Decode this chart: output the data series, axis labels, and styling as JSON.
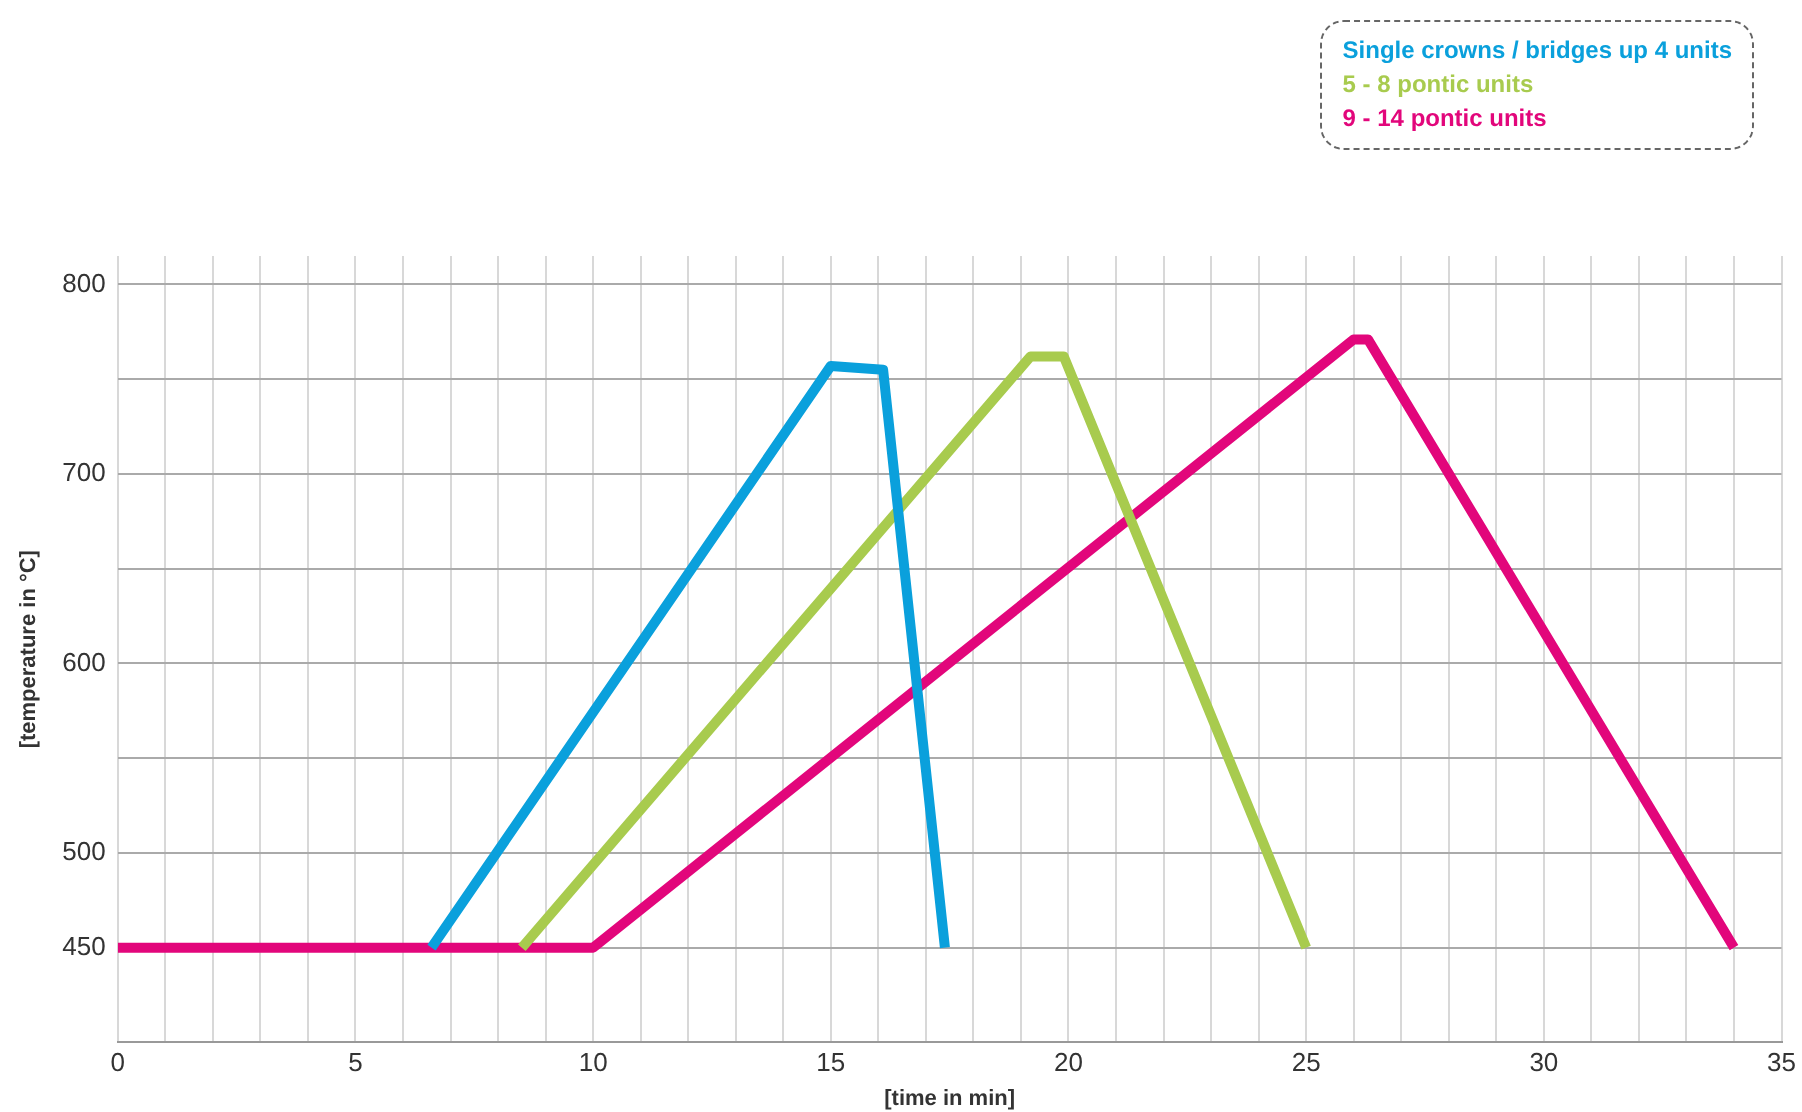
{
  "chart_data": {
    "type": "line",
    "xlabel": "[time in min]",
    "ylabel": "[temperature in °C]",
    "xlim": [
      0,
      35
    ],
    "ylim": [
      400,
      815
    ],
    "xticks": [
      0,
      {
        "value": 1,
        "label": null
      },
      {
        "value": 2,
        "label": null
      },
      {
        "value": 3,
        "label": null
      },
      {
        "value": 4,
        "label": null
      },
      5,
      {
        "value": 6,
        "label": null
      },
      {
        "value": 7,
        "label": null
      },
      {
        "value": 8,
        "label": null
      },
      {
        "value": 9,
        "label": null
      },
      10,
      {
        "value": 11,
        "label": null
      },
      {
        "value": 12,
        "label": null
      },
      {
        "value": 13,
        "label": null
      },
      {
        "value": 14,
        "label": null
      },
      15,
      {
        "value": 16,
        "label": null
      },
      {
        "value": 17,
        "label": null
      },
      {
        "value": 18,
        "label": null
      },
      {
        "value": 19,
        "label": null
      },
      20,
      {
        "value": 21,
        "label": null
      },
      {
        "value": 22,
        "label": null
      },
      {
        "value": 23,
        "label": null
      },
      {
        "value": 24,
        "label": null
      },
      25,
      {
        "value": 26,
        "label": null
      },
      {
        "value": 27,
        "label": null
      },
      {
        "value": 28,
        "label": null
      },
      {
        "value": 29,
        "label": null
      },
      30,
      {
        "value": 31,
        "label": null
      },
      {
        "value": 32,
        "label": null
      },
      {
        "value": 33,
        "label": null
      },
      {
        "value": 34,
        "label": null
      },
      35
    ],
    "yticks": [
      {
        "value": 400,
        "label": null
      },
      450,
      500,
      {
        "value": 550,
        "label": null
      },
      600,
      {
        "value": 650,
        "label": null
      },
      700,
      {
        "value": 750,
        "label": null
      },
      800
    ],
    "grid": true,
    "legend": "top right",
    "marker": "none",
    "line_style": "solid",
    "series": [
      {
        "name": "Single crowns / bridges up 4 units",
        "color": "#0aa0dc",
        "x": [
          6.6,
          15.0,
          16.1,
          17.4
        ],
        "values": [
          450,
          757,
          755,
          450
        ]
      },
      {
        "name": "5 - 8 pontic units",
        "color": "#a8cb4e",
        "x": [
          8.5,
          19.2,
          19.9,
          25.0
        ],
        "values": [
          450,
          762,
          762,
          450
        ]
      },
      {
        "name": "9 - 14 pontic units",
        "color": "#e2067b",
        "x": [
          0,
          10,
          26.0,
          26.3,
          34.0
        ],
        "values": [
          450,
          450,
          771,
          771,
          450
        ]
      }
    ]
  }
}
